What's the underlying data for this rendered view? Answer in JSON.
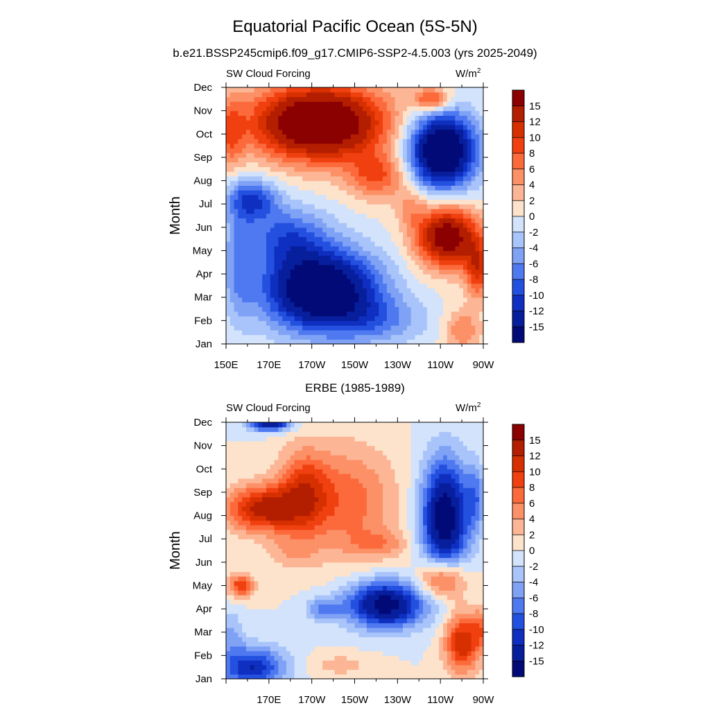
{
  "title": "Equatorial Pacific Ocean (5S-5N)",
  "colorbar": {
    "levels": [
      "15",
      "12",
      "10",
      "8",
      "6",
      "4",
      "2",
      "0",
      "-2",
      "-4",
      "-6",
      "-8",
      "-10",
      "-12",
      "-15"
    ],
    "colors": [
      "#8b0000",
      "#b41e00",
      "#d73000",
      "#f04010",
      "#fc6a3c",
      "#fc9066",
      "#fcb696",
      "#fde3cc",
      "#d2e3fb",
      "#a8c4fa",
      "#7fa2f5",
      "#4f79f0",
      "#2450e0",
      "#0f2fc0",
      "#071f9c",
      "#020a78"
    ]
  },
  "chart_data": [
    {
      "type": "heatmap",
      "title": "b.e21.BSSP245cmip6.f09_g17.CMIP6-SSP2-4.5.003 (yrs 2025-2049)",
      "left_label": "SW Cloud Forcing",
      "units_label": "W/m",
      "units_sup": "2",
      "ylabel": "Month",
      "y_tick_labels": [
        "Jan",
        "Feb",
        "Mar",
        "Apr",
        "May",
        "Jun",
        "Jul",
        "Aug",
        "Sep",
        "Oct",
        "Nov",
        "Dec"
      ],
      "x_tick_labels": [
        "150E",
        "170E",
        "170W",
        "150W",
        "130W",
        "110W",
        "90W"
      ],
      "x_tick_lon": [
        150,
        170,
        190,
        210,
        230,
        250,
        270
      ],
      "xlim": [
        150,
        270
      ],
      "ylim": [
        1,
        12
      ],
      "grid": false,
      "cmin": -16,
      "cmax": 16
    },
    {
      "type": "heatmap",
      "title": "ERBE (1985-1989)",
      "left_label": "SW Cloud Forcing",
      "units_label": "W/m",
      "units_sup": "2",
      "ylabel": "Month",
      "y_tick_labels": [
        "Jan",
        "Feb",
        "Mar",
        "Apr",
        "May",
        "Jun",
        "Jul",
        "Aug",
        "Sep",
        "Oct",
        "Nov",
        "Dec"
      ],
      "x_tick_labels": [
        "",
        "170E",
        "170W",
        "150W",
        "130W",
        "110W",
        "90W"
      ],
      "x_tick_lon": [
        150,
        170,
        190,
        210,
        230,
        250,
        270
      ],
      "xlim": [
        150,
        270
      ],
      "ylim": [
        1,
        12
      ],
      "grid": false,
      "cmin": -16,
      "cmax": 16
    }
  ]
}
